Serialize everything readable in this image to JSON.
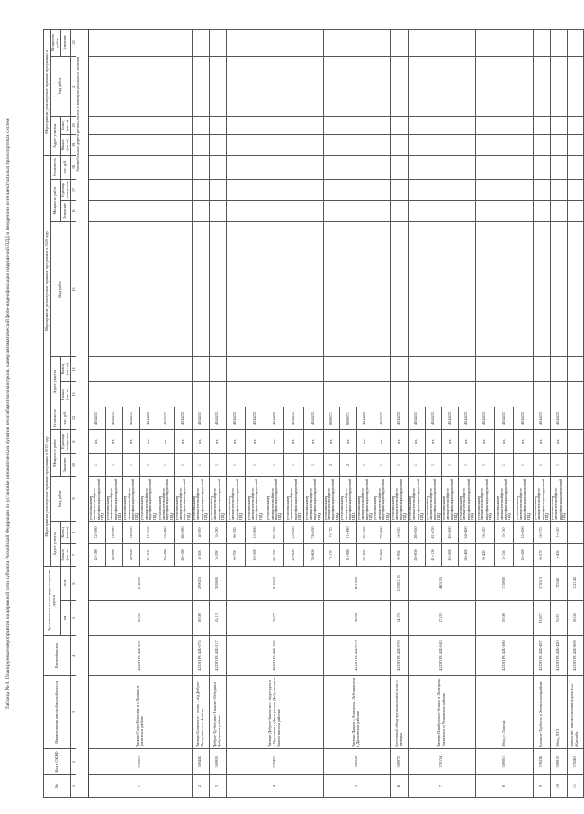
{
  "title": "Таблица № 8. Планируемые мероприятия на дорожной сети субъекта Российской Федерации по установке автоматических пунктов весогабаритного контроля, камер автоматической фото-видеофиксации нарушений ПДД и внедрению интеллектуальных транспортных систем",
  "header": {
    "no": "№",
    "code": "Код в СКДФ",
    "name": "Наименование автомобильной дороги",
    "identifier": "Идентификатор",
    "length_area": "Протяженность и площадь покрытия дороги",
    "km": "км",
    "sqm": "кв.м",
    "y2019": "Мероприятия, реализуемые в рамках программы в 2019 году",
    "y2020": "Мероприятия, реализуемые в рамках программы в 2020 году",
    "y2021": "Мероприятия, реализуемые в рамках программы в",
    "address": "Адрес участка",
    "work_type": "Вид работ",
    "capacity": "Мощность работ",
    "cost": "Стоимость",
    "start": "Начало (км+м)",
    "end": "Конец (км+м)",
    "value": "Значение",
    "unit": "Единица измерения",
    "thousand_rub": "тыс. руб.",
    "column_numbers": [
      "1",
      "2",
      "3",
      "4",
      "5",
      "6",
      "7",
      "8",
      "9",
      "10",
      "11",
      "12",
      "13",
      "14",
      "15",
      "16",
      "17",
      "18",
      "19",
      "20",
      "21",
      "22"
    ]
  },
  "section_label": "Автомобильные дороги регионального и межмуниципального значения",
  "roads": [
    {
      "no": "1",
      "code": "370001",
      "name": "Липецк-Грязи-Воронеж и г. Липецк в Грязинском районе",
      "id": "42 ОП РЗ 42К-001",
      "km": "26,30",
      "sqm": "214500",
      "segments": [
        {
          "start": "12+180",
          "end": "12+180",
          "work": "установка камер автоматической фото- видеофиксации нарушений ПДД",
          "value": "1",
          "unit": "шт.",
          "cost": "4044,33"
        },
        {
          "start": "14+080",
          "end": "14+080",
          "work": "установка камер автоматической фото- видеофиксации нарушений ПДД",
          "value": "1",
          "unit": "шт.",
          "cost": "4044,33"
        },
        {
          "start": "14+850",
          "end": "14+850",
          "work": "установка камер автоматической фото- видеофиксации нарушений ПДД",
          "value": "1",
          "unit": "шт.",
          "cost": "4044,33"
        },
        {
          "start": "17+510",
          "end": "17+510",
          "work": "установка камер автоматической фото- видеофиксации нарушений ПДД",
          "value": "1",
          "unit": "шт.",
          "cost": "4044,33"
        },
        {
          "start": "24+480",
          "end": "24+480",
          "work": "установка камер автоматической фото- видеофиксации нарушений ПДД",
          "value": "1",
          "unit": "шт.",
          "cost": "4044,33"
        },
        {
          "start": "26+180",
          "end": "26+180",
          "work": "установка камер автоматической фото- видеофиксации нарушений ПДД",
          "value": "1",
          "unit": "шт.",
          "cost": "4044,33"
        }
      ]
    },
    {
      "no": "2",
      "code": "369440",
      "name": "Липецк-Боринское - прим. к а/д Доброе-Мичуринск в с. Липецк",
      "id": "42 ОП РЗ 42К-075",
      "km": "39,08",
      "sqm": "299025",
      "segments": [
        {
          "start": "4+500",
          "end": "4+500",
          "work": "установка камер автоматической фото- видеофиксации нарушений ПДД",
          "value": "1",
          "unit": "шт.",
          "cost": "4044,33"
        }
      ]
    },
    {
      "no": "3",
      "code": "369959",
      "name": "Доброе-Трубетчино-Нижнее-Лебедян. в Добровском районе",
      "id": "42 ОП РЗ 42К-217",
      "km": "55,13",
      "sqm": "385900",
      "segments": [
        {
          "start": "3+290",
          "end": "3+290",
          "work": "установка камер автоматической фото- видеофиксации нарушений ПДД",
          "value": "1",
          "unit": "шт.",
          "cost": "4044,33"
        }
      ]
    },
    {
      "no": "4",
      "code": "370457",
      "name": "Липецк-Доброе-Чаплыгин с подъездом к с. Ярославка и Дмитриевка, Добровском и Чаплыгинском районах",
      "id": "42 ОП РЗ 42К-189",
      "km": "73,77",
      "sqm": "811050",
      "segments": [
        {
          "start": "6+700",
          "end": "6+700",
          "work": "установка камер автоматической фото- видеофиксации нарушений ПДД",
          "value": "1",
          "unit": "шт.",
          "cost": "4044,33"
        },
        {
          "start": "13+300",
          "end": "13+300",
          "work": "установка камер автоматической фото- видеофиксации нарушений ПДД",
          "value": "1",
          "unit": "шт.",
          "cost": "4044,33"
        },
        {
          "start": "20+700",
          "end": "20+700",
          "work": "установка камер автоматической фото- видеофиксации нарушений ПДД",
          "value": "1",
          "unit": "шт.",
          "cost": "4044,33"
        },
        {
          "start": "23+820",
          "end": "23+820",
          "work": "установка камер автоматической фото- видеофиксации нарушений ПДД",
          "value": "1",
          "unit": "шт.",
          "cost": "4044,33"
        },
        {
          "start": "74+650",
          "end": "74+650",
          "work": "установка камер автоматической фото- видеофиксации нарушений ПДД",
          "value": "1",
          "unit": "шт.",
          "cost": "4044,33"
        }
      ]
    },
    {
      "no": "5",
      "code": "369528",
      "name": "Липецк-Данков в Липецком, Лебедянском и Данковском районах",
      "id": "42 ОП РЗ 42К-079",
      "km": "76,84",
      "sqm": "691500",
      "segments": [
        {
          "start": "7+170",
          "end": "7+170",
          "work": "установка камер автоматической фото- видеофиксации нарушений ПДД",
          "value": "2",
          "unit": "шт.",
          "cost": "8088,71"
        },
        {
          "start": "11+980",
          "end": "11+980",
          "work": "установка камер автоматической фото- видеофиксации нарушений ПДД",
          "value": "2",
          "unit": "шт.",
          "cost": "8088,71"
        },
        {
          "start": "30+650",
          "end": "30+650",
          "work": "установка камер автоматической фото- видеофиксации нарушений ПДД",
          "value": "1",
          "unit": "шт.",
          "cost": "4044,33"
        },
        {
          "start": "77+900",
          "end": "77+900",
          "work": "установка камер автоматической фото- видеофиксации нарушений ПДД",
          "value": "1",
          "unit": "шт.",
          "cost": "4044,33"
        }
      ]
    },
    {
      "no": "6",
      "code": "369970",
      "name": "Восточный обход промышленной зоны г. Липецка",
      "id": "42 ОП РЗ 42К-070",
      "km": "14,70",
      "sqm": "103001,13",
      "segments": [
        {
          "start": "0+950",
          "end": "0+950",
          "work": "установка камер автоматической фото- видеофиксации нарушений ПДД",
          "value": "1",
          "unit": "шт.",
          "cost": "4044,33"
        }
      ]
    },
    {
      "no": "7",
      "code": "379134",
      "name": "Липецк-Октябрьское-Усмань в Липецком, Грязинском и Усманском районах",
      "id": "42 ОП РЗ 42К-043",
      "km": "57,03",
      "sqm": "460155",
      "segments": [
        {
          "start": "26+850",
          "end": "26+850",
          "work": "установка камер автоматической фото- видеофиксации нарушений ПДД",
          "value": "1",
          "unit": "шт.",
          "cost": "4044,33"
        },
        {
          "start": "41+130",
          "end": "41+130",
          "work": "установка камер автоматической фото- видеофиксации нарушений ПДД",
          "value": "1",
          "unit": "шт.",
          "cost": "4044,33"
        },
        {
          "start": "43+500",
          "end": "43+500",
          "work": "установка камер автоматической фото- видеофиксации нарушений ПДД",
          "value": "1",
          "unit": "шт.",
          "cost": "4044,33"
        },
        {
          "start": "54+400",
          "end": "54+400",
          "work": "установка камер автоматической фото- видеофиксации нарушений ПДД",
          "value": "1",
          "unit": "шт.",
          "cost": "4044,33"
        }
      ]
    },
    {
      "no": "8",
      "code": "369001",
      "name": "Обход г. Липецк",
      "id": "42 ОП РЗ 42К-580",
      "km": "19,08",
      "sqm": "175900",
      "segments": [
        {
          "start": "0+420",
          "end": "0+420",
          "work": "установка камер автоматической фото- видеофиксации нарушений ПДД",
          "value": "1",
          "unit": "шт.",
          "cost": "4044,33"
        },
        {
          "start": "3+150",
          "end": "3+150",
          "work": "установка камер автоматической фото- видеофиксации нарушений ПДД",
          "value": "1",
          "unit": "шт.",
          "cost": "4044,33"
        },
        {
          "start": "15+500",
          "end": "15+500",
          "work": "установка камер автоматической фото- видеофиксации нарушений ПДД",
          "value": "1",
          "unit": "шт.",
          "cost": "4044,33"
        }
      ]
    },
    {
      "no": "9",
      "code": "378236",
      "name": "Хлевное-Торбеево в Хлевенском районе",
      "id": "42 ОП РЗ 42К-487",
      "km": "63,673",
      "sqm": "373015",
      "segments": [
        {
          "start": "0+570",
          "end": "0+570",
          "work": "установка камер автоматической фото- видеофиксации нарушений ПДД",
          "value": "1",
          "unit": "шт.",
          "cost": "4044,33"
        }
      ]
    },
    {
      "no": "10",
      "code": "369919",
      "name": "Обход ЛТЗ",
      "id": "42 ОП РЗ 42К-420",
      "km": "9,03",
      "sqm": "72540",
      "segments": [
        {
          "start": "1+450",
          "end": "1+450",
          "work": "установка камер автоматической фото- видеофиксации нарушений ПДД",
          "value": "1",
          "unit": "шт.",
          "cost": "4044,33"
        }
      ]
    },
    {
      "no": "11",
      "code": "370263",
      "name": "Чаплыгин - автомобильная дорога Р22 «Каспий»",
      "id": "42 ОП РЗ 42К-809",
      "km": "18,02",
      "sqm": "132140",
      "segments": [
        {
          "start": "",
          "end": "",
          "work": "",
          "value": "",
          "unit": "",
          "cost": ""
        }
      ]
    }
  ]
}
